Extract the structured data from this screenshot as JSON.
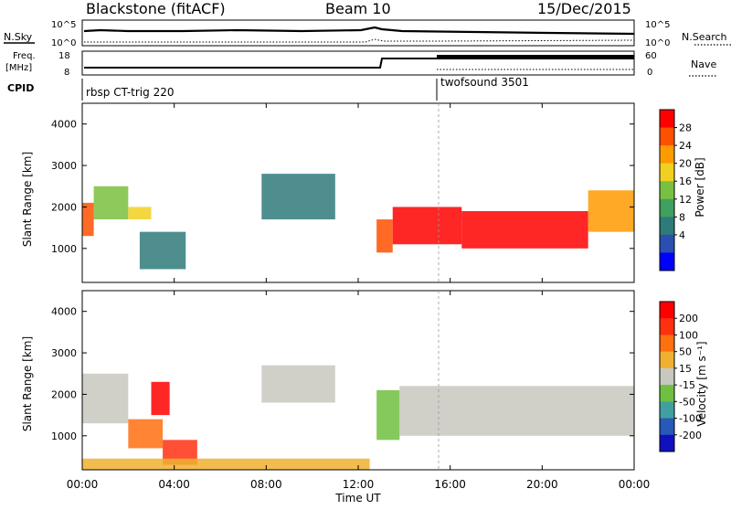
{
  "header": {
    "station": "Blackstone (fitACF)",
    "beam": "Beam 10",
    "date": "15/Dec/2015"
  },
  "top_panels": {
    "nsky_label": "N.Sky",
    "nsearch_label": "N.Search",
    "freq_label_1": "Freq.",
    "freq_label_2": "[MHz]",
    "nave_label": "Nave",
    "cpid_label": "CPID",
    "left_ticks_noise": [
      "10^5",
      "10^0"
    ],
    "right_ticks_noise": [
      "10^5",
      "10^0"
    ],
    "left_ticks_freq": [
      "18",
      "8"
    ],
    "right_ticks_nave": [
      "60",
      "0"
    ],
    "cpid_segments": [
      {
        "label": "rbsp CT-trig 220",
        "start_hour": 0.0
      },
      {
        "label": "twofsound 3501",
        "start_hour": 15.5
      }
    ]
  },
  "x_axis": {
    "label": "Time UT",
    "ticks": [
      "00:00",
      "04:00",
      "08:00",
      "12:00",
      "16:00",
      "20:00",
      "00:00"
    ],
    "tick_hours": [
      0,
      4,
      8,
      12,
      16,
      20,
      24
    ]
  },
  "power_panel": {
    "ylabel": "Slant Range [km]",
    "yticks": [
      "1000",
      "2000",
      "3000",
      "4000"
    ],
    "ytick_values": [
      1000,
      2000,
      3000,
      4000
    ],
    "colorbar_label": "Power [dB]",
    "colorbar_ticks": [
      "28",
      "24",
      "20",
      "16",
      "12",
      "8",
      "4"
    ],
    "colors": [
      "#0000ff",
      "#2a4fb0",
      "#2f7a7a",
      "#3fa060",
      "#7ac040",
      "#f0d020",
      "#ff9a00",
      "#ff5000",
      "#ff0000"
    ]
  },
  "velocity_panel": {
    "ylabel": "Slant Range [km]",
    "yticks": [
      "1000",
      "2000",
      "3000",
      "4000"
    ],
    "ytick_values": [
      1000,
      2000,
      3000,
      4000
    ],
    "colorbar_label": "Velocity [m s⁻¹]",
    "colorbar_ticks": [
      "200",
      "100",
      "50",
      "15",
      "-15",
      "-50",
      "-100",
      "-200"
    ],
    "colors": [
      "#1010c0",
      "#2858b8",
      "#40a0a0",
      "#70c040",
      "#c8c8c0",
      "#f0b030",
      "#ff7010",
      "#ff3010",
      "#ff0000"
    ]
  },
  "chart_data": {
    "type": "heatmap",
    "x_range_hours": [
      0,
      24
    ],
    "y_range_km": [
      180,
      4500
    ],
    "power_regions": [
      {
        "t0": 0.0,
        "t1": 0.5,
        "r0": 1300,
        "r1": 2100,
        "level": 7
      },
      {
        "t0": 0.5,
        "t1": 2.0,
        "r0": 1700,
        "r1": 2500,
        "level": 4
      },
      {
        "t0": 2.0,
        "t1": 3.0,
        "r0": 1700,
        "r1": 2000,
        "level": 5
      },
      {
        "t0": 2.5,
        "t1": 4.5,
        "r0": 500,
        "r1": 1400,
        "level": 2
      },
      {
        "t0": 7.8,
        "t1": 11.0,
        "r0": 1700,
        "r1": 2800,
        "level": 2
      },
      {
        "t0": 12.8,
        "t1": 13.5,
        "r0": 900,
        "r1": 1700,
        "level": 7
      },
      {
        "t0": 13.5,
        "t1": 16.5,
        "r0": 1100,
        "r1": 2000,
        "level": 8
      },
      {
        "t0": 16.5,
        "t1": 22.0,
        "r0": 1000,
        "r1": 1900,
        "level": 8
      },
      {
        "t0": 22.0,
        "t1": 24.0,
        "r0": 1400,
        "r1": 2400,
        "level": 6
      }
    ],
    "velocity_regions": [
      {
        "t0": 0.0,
        "t1": 2.0,
        "r0": 1300,
        "r1": 2500,
        "level": 4
      },
      {
        "t0": 2.0,
        "t1": 3.5,
        "r0": 700,
        "r1": 1400,
        "level": 6
      },
      {
        "t0": 3.0,
        "t1": 3.8,
        "r0": 1500,
        "r1": 2300,
        "level": 8
      },
      {
        "t0": 3.5,
        "t1": 5.0,
        "r0": 300,
        "r1": 900,
        "level": 7
      },
      {
        "t0": 7.8,
        "t1": 11.0,
        "r0": 1800,
        "r1": 2700,
        "level": 4
      },
      {
        "t0": 12.8,
        "t1": 13.8,
        "r0": 900,
        "r1": 2100,
        "level": 3
      },
      {
        "t0": 13.8,
        "t1": 24.0,
        "r0": 1000,
        "r1": 2200,
        "level": 4
      },
      {
        "t0": 0.0,
        "t1": 12.5,
        "r0": 180,
        "r1": 450,
        "level": 5
      }
    ]
  }
}
